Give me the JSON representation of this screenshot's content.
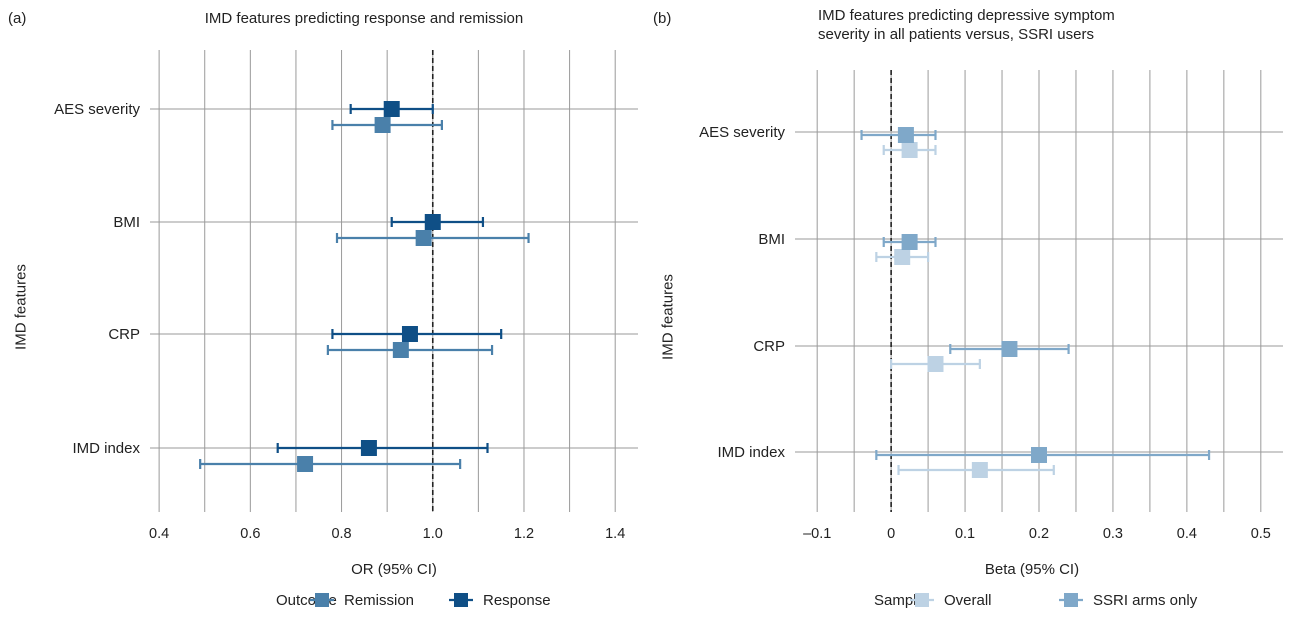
{
  "chart_data": [
    {
      "panel": "(a)",
      "type": "scatter",
      "title": "IMD features predicting response and remission",
      "xlabel": "OR (95% CI)",
      "ylabel": "IMD features",
      "xlim": [
        0.38,
        1.45
      ],
      "xticks": [
        0.4,
        0.6,
        0.8,
        1.0,
        1.2,
        1.4
      ],
      "xtick_labels": [
        "0.4",
        "0.6",
        "0.8",
        "1.0",
        "1.2",
        "1.4"
      ],
      "reference_line": 1.0,
      "grid": true,
      "categories": [
        "AES severity",
        "BMI",
        "CRP",
        "IMD index"
      ],
      "legend": {
        "title": "Outcome",
        "position": "bottom"
      },
      "series": [
        {
          "name": "Remission",
          "color": "#4a80aa",
          "estimate": [
            0.89,
            0.98,
            0.93,
            0.72
          ],
          "lower": [
            0.78,
            0.79,
            0.77,
            0.49
          ],
          "upper": [
            1.02,
            1.21,
            1.13,
            1.06
          ]
        },
        {
          "name": "Response",
          "color": "#0f4f86",
          "estimate": [
            0.91,
            1.0,
            0.95,
            0.86
          ],
          "lower": [
            0.82,
            0.91,
            0.78,
            0.66
          ],
          "upper": [
            1.0,
            1.11,
            1.15,
            1.12
          ]
        }
      ]
    },
    {
      "panel": "(b)",
      "type": "scatter",
      "title": "IMD features predicting depressive symptom severity in all patients versus, SSRI users",
      "title_lines": [
        "IMD features predicting depressive symptom",
        "severity in all patients versus, SSRI users"
      ],
      "xlabel": "Beta (95% CI)",
      "ylabel": "IMD features",
      "xlim": [
        -0.13,
        0.53
      ],
      "xticks": [
        -0.1,
        0,
        0.1,
        0.2,
        0.3,
        0.4,
        0.5
      ],
      "xtick_labels": [
        "–0.1",
        "0",
        "0.1",
        "0.2",
        "0.3",
        "0.4",
        "0.5"
      ],
      "reference_line": 0,
      "grid": true,
      "categories": [
        "AES severity",
        "BMI",
        "CRP",
        "IMD index"
      ],
      "legend": {
        "title": "Sample",
        "position": "bottom"
      },
      "series": [
        {
          "name": "Overall",
          "color": "#bdd2e4",
          "estimate": [
            0.025,
            0.015,
            0.06,
            0.12
          ],
          "lower": [
            -0.01,
            -0.02,
            0.0,
            0.01
          ],
          "upper": [
            0.06,
            0.05,
            0.12,
            0.22
          ]
        },
        {
          "name": "SSRI arms only",
          "color": "#7fa8c9",
          "estimate": [
            0.02,
            0.025,
            0.16,
            0.2
          ],
          "lower": [
            -0.04,
            -0.01,
            0.08,
            -0.02
          ],
          "upper": [
            0.06,
            0.06,
            0.24,
            0.43
          ]
        }
      ]
    }
  ]
}
